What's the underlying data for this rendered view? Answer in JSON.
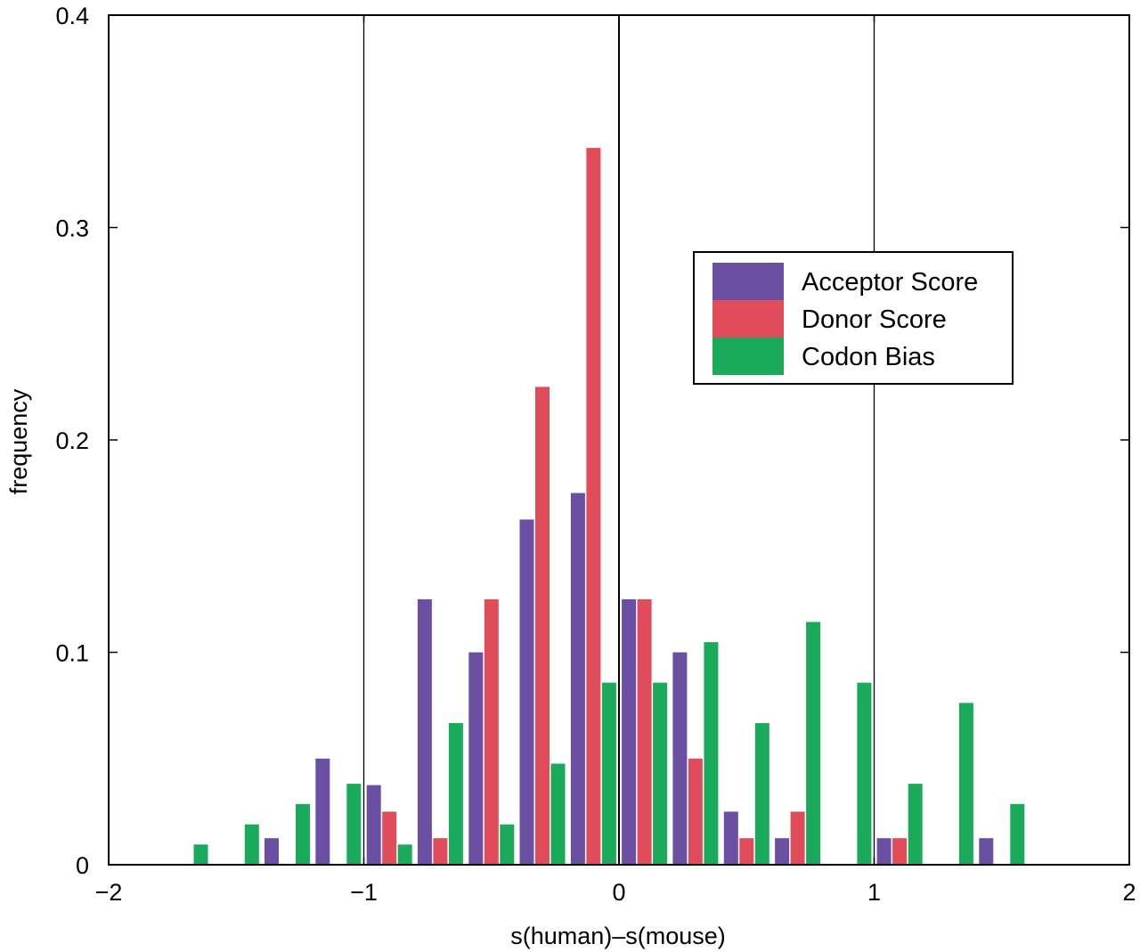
{
  "chart_data": {
    "type": "bar",
    "xlabel": "s(human)–s(mouse)",
    "ylabel": "frequency",
    "xlim": [
      -2,
      2
    ],
    "ylim": [
      0,
      0.4
    ],
    "xticks": [
      -2,
      -1,
      0,
      1,
      2
    ],
    "xtick_labels": [
      "−2",
      "−1",
      "0",
      "1",
      "2"
    ],
    "yticks": [
      0,
      0.1,
      0.2,
      0.3,
      0.4
    ],
    "ytick_labels": [
      "0",
      "0.1",
      "0.2",
      "0.3",
      "0.4"
    ],
    "vertical_lines": [
      -1,
      0,
      1
    ],
    "grid": false,
    "legend_position": "upper-right",
    "bin_width": 0.2,
    "x": [
      -1.7,
      -1.5,
      -1.3,
      -1.1,
      -0.9,
      -0.7,
      -0.5,
      -0.3,
      -0.1,
      0.1,
      0.3,
      0.5,
      0.7,
      0.9,
      1.1,
      1.3,
      1.5,
      1.7
    ],
    "series": [
      {
        "name": "Acceptor Score",
        "color": "#6b4fa3",
        "values": [
          0,
          0,
          0.0125,
          0.05,
          0.0375,
          0.125,
          0.1,
          0.1625,
          0.175,
          0.125,
          0.1,
          0.025,
          0.0125,
          0,
          0.0125,
          0,
          0.0125,
          0
        ]
      },
      {
        "name": "Donor Score",
        "color": "#e04c5a",
        "values": [
          0,
          0,
          0,
          0,
          0.025,
          0.0125,
          0.125,
          0.225,
          0.3375,
          0.125,
          0.05,
          0.0125,
          0.025,
          0,
          0.0125,
          0,
          0,
          0
        ]
      },
      {
        "name": "Codon Bias",
        "color": "#1aaa5c",
        "values": [
          0.0095,
          0.019,
          0.0286,
          0.0381,
          0.0095,
          0.0667,
          0.019,
          0.0476,
          0.0857,
          0.0857,
          0.1048,
          0.0667,
          0.1143,
          0.0857,
          0.0381,
          0.0762,
          0.0286,
          0
        ]
      }
    ]
  }
}
